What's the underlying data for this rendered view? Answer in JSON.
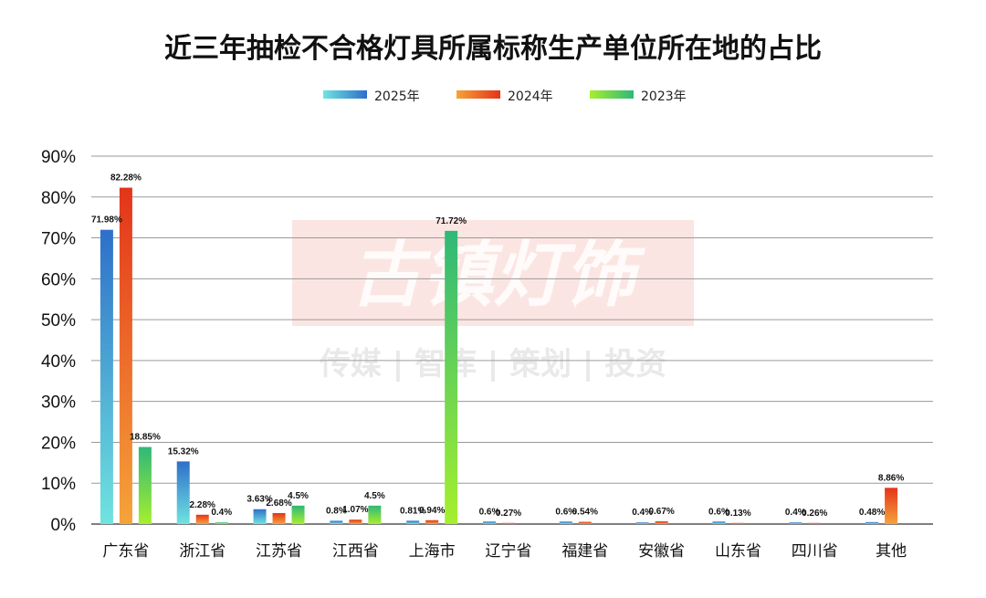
{
  "watermark": {
    "logo_text": "古镇灯饰",
    "tagline": "传媒 | 智库 | 策划 | 投资"
  },
  "chart_data": {
    "type": "bar",
    "title": "近三年抽检不合格灯具所属标称生产单位所在地的占比",
    "xlabel": "",
    "ylabel": "",
    "ylim": [
      0,
      90
    ],
    "y_ticks": [
      "0%",
      "10%",
      "20%",
      "30%",
      "40%",
      "50%",
      "60%",
      "70%",
      "80%",
      "90%"
    ],
    "grid": true,
    "legend_position": "top-center",
    "categories": [
      "广东省",
      "浙江省",
      "江苏省",
      "江西省",
      "上海市",
      "辽宁省",
      "福建省",
      "安徽省",
      "山东省",
      "四川省",
      "其他"
    ],
    "series": [
      {
        "name": "2025年",
        "gradient": [
          "#6fe4e0",
          "#2e6fc9"
        ],
        "values": [
          71.98,
          15.32,
          3.63,
          0.8,
          0.81,
          0.6,
          0.6,
          0.4,
          0.6,
          0.4,
          0.48
        ],
        "labels": [
          "71.98%",
          "15.32%",
          "3.63%",
          "0.8%",
          "0.81%",
          "0.6%",
          "0.6%",
          "0.4%",
          "0.6%",
          "0.4%",
          "0.48%"
        ]
      },
      {
        "name": "2024年",
        "gradient": [
          "#f6a33a",
          "#e3341a"
        ],
        "values": [
          82.28,
          2.28,
          2.68,
          1.07,
          0.94,
          0.27,
          0.54,
          0.67,
          0.13,
          0.26,
          8.86
        ],
        "labels": [
          "82.28%",
          "2.28%",
          "2.68%",
          "1.07%",
          "0.94%",
          "0.27%",
          "0.54%",
          "0.67%",
          "0.13%",
          "0.26%",
          "8.86%"
        ]
      },
      {
        "name": "2023年",
        "gradient": [
          "#a6ef2e",
          "#2fb878"
        ],
        "values": [
          18.85,
          0.4,
          4.5,
          4.5,
          71.72,
          null,
          null,
          null,
          null,
          null,
          null
        ],
        "labels": [
          "18.85%",
          "0.4%",
          "4.5%",
          "4.5%",
          "71.72%",
          null,
          null,
          null,
          null,
          null,
          null
        ]
      }
    ]
  }
}
